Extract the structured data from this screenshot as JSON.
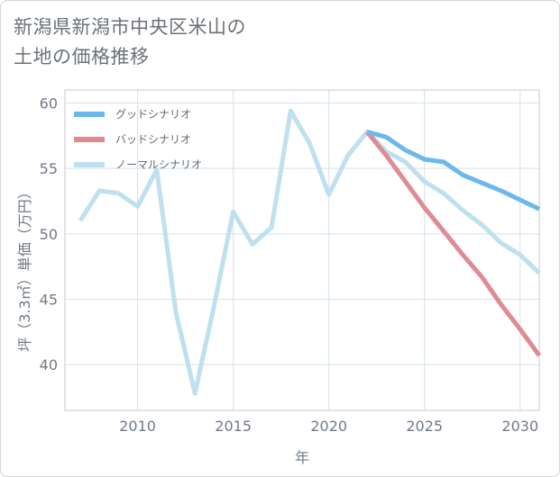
{
  "header": {
    "title_line1": "新潟県新潟市中央区米山の",
    "title_line2": "土地の価格推移"
  },
  "chart_data": {
    "type": "line",
    "title": "新潟県新潟市中央区米山の土地の価格推移",
    "xlabel": "年",
    "ylabel": "坪（3.3㎡）単価（万円）",
    "xlim": [
      2006.2,
      2031
    ],
    "ylim": [
      36.5,
      61
    ],
    "xticks": [
      2010,
      2015,
      2020,
      2025,
      2030
    ],
    "yticks": [
      40,
      45,
      50,
      55,
      60
    ],
    "grid": true,
    "legend_position": "top-left",
    "series": [
      {
        "name": "グッドシナリオ",
        "color": "#6cb8ec",
        "x": [
          2022,
          2023,
          2024,
          2025,
          2026,
          2027,
          2028,
          2029,
          2030,
          2031
        ],
        "values": [
          57.8,
          57.4,
          56.4,
          55.7,
          55.5,
          54.5,
          53.9,
          53.3,
          52.6,
          51.9
        ]
      },
      {
        "name": "バッドシナリオ",
        "color": "#e08a94",
        "x": [
          2022,
          2023,
          2024,
          2025,
          2026,
          2027,
          2028,
          2029,
          2030,
          2031
        ],
        "values": [
          57.8,
          56.0,
          54.0,
          52.0,
          50.2,
          48.4,
          46.7,
          44.6,
          42.7,
          40.7
        ]
      },
      {
        "name": "ノーマルシナリオ",
        "color": "#bfe0ee",
        "x": [
          2007,
          2008,
          2009,
          2010,
          2011,
          2012,
          2013,
          2014,
          2015,
          2016,
          2017,
          2018,
          2019,
          2020,
          2021,
          2022,
          2023,
          2024,
          2025,
          2026,
          2027,
          2028,
          2029,
          2030,
          2031
        ],
        "values": [
          51.0,
          53.3,
          53.1,
          52.1,
          54.9,
          44.0,
          37.8,
          44.5,
          51.7,
          49.2,
          50.5,
          59.4,
          56.9,
          53.0,
          56.0,
          57.8,
          56.3,
          55.5,
          54.0,
          53.1,
          51.8,
          50.7,
          49.3,
          48.4,
          47.0
        ]
      }
    ]
  }
}
